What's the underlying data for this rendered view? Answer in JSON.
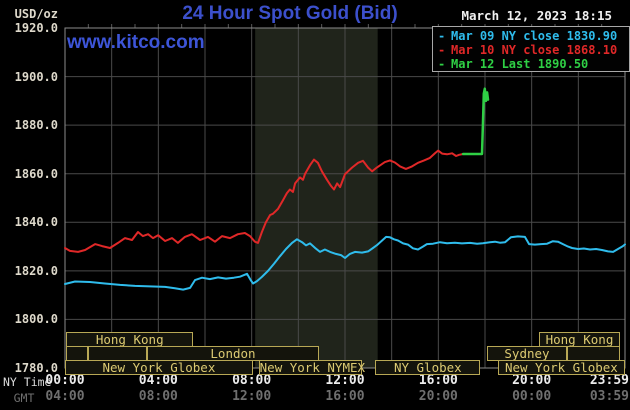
{
  "header": {
    "title": "24 Hour Spot Gold (Bid)",
    "datetime": "March 12, 2023 18:15",
    "watermark": "www.kitco.com",
    "y_unit": "USD/oz"
  },
  "legend": [
    {
      "label": "Mar 09 NY close 1830.90",
      "color": "#2fbcec"
    },
    {
      "label": "Mar 10 NY close 1868.10",
      "color": "#e02828"
    },
    {
      "label": "Mar 12 Last 1890.50",
      "color": "#2fd045"
    }
  ],
  "axes": {
    "ny_time_label": "NY Time",
    "gmt_label": "GMT",
    "y_ticks": [
      "1920.0",
      "1900.0",
      "1880.0",
      "1860.0",
      "1840.0",
      "1820.0",
      "1800.0",
      "1780.0"
    ],
    "ny_ticks": [
      "00:00",
      "04:00",
      "08:00",
      "12:00",
      "16:00",
      "20:00",
      "23:59"
    ],
    "gmt_ticks": [
      "04:00",
      "08:00",
      "12:00",
      "16:00",
      "20:00",
      "00:00",
      "03:59"
    ]
  },
  "sessions": [
    {
      "row": 0,
      "label": "Hong Kong",
      "start_h": 0.05,
      "end_h": 5.5
    },
    {
      "row": 0,
      "label": "Hong Kong",
      "start_h": 20.3,
      "end_h": 23.8
    },
    {
      "row": 1,
      "label": "",
      "start_h": 0.05,
      "end_h": 1.0
    },
    {
      "row": 1,
      "label": "",
      "start_h": 1.0,
      "end_h": 3.5
    },
    {
      "row": 1,
      "label": "London",
      "start_h": 3.5,
      "end_h": 10.9
    },
    {
      "row": 1,
      "label": "Sydney",
      "start_h": 18.1,
      "end_h": 21.5
    },
    {
      "row": 1,
      "label": "",
      "start_h": 21.5,
      "end_h": 23.8
    },
    {
      "row": 2,
      "label": "New York Globex",
      "start_h": 0.0,
      "end_h": 8.05
    },
    {
      "row": 2,
      "label": "New York NYMEX",
      "start_h": 8.3,
      "end_h": 12.75
    },
    {
      "row": 2,
      "label": "NY Globex",
      "start_h": 13.3,
      "end_h": 17.8
    },
    {
      "row": 2,
      "label": "New York Globex",
      "start_h": 18.55,
      "end_h": 24.0
    }
  ],
  "colors": {
    "grid": "#4a4a4a",
    "plot_border": "#8c8c8c",
    "highlight_band": "#20241b",
    "title_blue": "#3c50cc",
    "khaki_text": "#dcca72"
  },
  "chart_data": {
    "type": "line",
    "title": "24 Hour Spot Gold (Bid)",
    "xlabel": "NY Time (hours)",
    "ylabel": "USD/oz",
    "xlim": [
      0,
      24
    ],
    "ylim": [
      1780,
      1920
    ],
    "grid": {
      "x_step_hours": 2,
      "y_step": 20
    },
    "highlight_band_hours": [
      8.15,
      13.4
    ],
    "legend_position": "top-right",
    "series": [
      {
        "name": "Mar 09",
        "close": 1830.9,
        "color": "#2fbcec",
        "points": [
          [
            0.0,
            1814.6
          ],
          [
            0.43,
            1815.6
          ],
          [
            1.07,
            1815.4
          ],
          [
            1.71,
            1814.8
          ],
          [
            2.36,
            1814.2
          ],
          [
            3.0,
            1813.8
          ],
          [
            3.64,
            1813.6
          ],
          [
            4.29,
            1813.4
          ],
          [
            4.71,
            1812.8
          ],
          [
            5.06,
            1812.3
          ],
          [
            5.36,
            1813.0
          ],
          [
            5.57,
            1816.2
          ],
          [
            5.87,
            1817.2
          ],
          [
            6.21,
            1816.6
          ],
          [
            6.56,
            1817.3
          ],
          [
            6.9,
            1816.8
          ],
          [
            7.24,
            1817.2
          ],
          [
            7.5,
            1817.6
          ],
          [
            7.8,
            1818.8
          ],
          [
            7.97,
            1816.0
          ],
          [
            8.06,
            1814.8
          ],
          [
            8.23,
            1815.8
          ],
          [
            8.44,
            1817.5
          ],
          [
            8.7,
            1820.0
          ],
          [
            8.96,
            1823.0
          ],
          [
            9.21,
            1826.0
          ],
          [
            9.47,
            1829.0
          ],
          [
            9.73,
            1831.5
          ],
          [
            9.94,
            1833.0
          ],
          [
            10.16,
            1831.8
          ],
          [
            10.33,
            1830.5
          ],
          [
            10.5,
            1831.3
          ],
          [
            10.71,
            1829.5
          ],
          [
            10.93,
            1827.8
          ],
          [
            11.14,
            1828.8
          ],
          [
            11.36,
            1827.8
          ],
          [
            11.61,
            1827.0
          ],
          [
            11.83,
            1826.5
          ],
          [
            12.0,
            1825.3
          ],
          [
            12.21,
            1827.0
          ],
          [
            12.43,
            1827.8
          ],
          [
            12.73,
            1827.5
          ],
          [
            12.99,
            1828.0
          ],
          [
            13.2,
            1829.4
          ],
          [
            13.37,
            1830.6
          ],
          [
            13.59,
            1832.5
          ],
          [
            13.76,
            1834.0
          ],
          [
            13.93,
            1833.8
          ],
          [
            14.1,
            1833.0
          ],
          [
            14.27,
            1832.5
          ],
          [
            14.49,
            1831.3
          ],
          [
            14.7,
            1830.8
          ],
          [
            14.91,
            1829.3
          ],
          [
            15.13,
            1828.8
          ],
          [
            15.34,
            1830.0
          ],
          [
            15.51,
            1831.0
          ],
          [
            15.77,
            1831.2
          ],
          [
            16.07,
            1831.8
          ],
          [
            16.37,
            1831.4
          ],
          [
            16.71,
            1831.6
          ],
          [
            17.01,
            1831.3
          ],
          [
            17.36,
            1831.5
          ],
          [
            17.66,
            1831.2
          ],
          [
            17.91,
            1831.4
          ],
          [
            18.21,
            1831.8
          ],
          [
            18.43,
            1832.0
          ],
          [
            18.64,
            1831.6
          ],
          [
            18.86,
            1831.8
          ],
          [
            19.11,
            1833.8
          ],
          [
            19.41,
            1834.2
          ],
          [
            19.71,
            1834.0
          ],
          [
            19.89,
            1831.0
          ],
          [
            20.14,
            1830.8
          ],
          [
            20.4,
            1831.0
          ],
          [
            20.66,
            1831.2
          ],
          [
            20.91,
            1832.2
          ],
          [
            21.13,
            1832.0
          ],
          [
            21.34,
            1831.0
          ],
          [
            21.56,
            1830.0
          ],
          [
            21.73,
            1829.4
          ],
          [
            21.99,
            1829.0
          ],
          [
            22.24,
            1829.2
          ],
          [
            22.5,
            1828.8
          ],
          [
            22.76,
            1829.0
          ],
          [
            23.01,
            1828.6
          ],
          [
            23.27,
            1828.0
          ],
          [
            23.49,
            1827.8
          ],
          [
            23.7,
            1829.0
          ],
          [
            23.91,
            1830.2
          ],
          [
            24.0,
            1830.9
          ]
        ]
      },
      {
        "name": "Mar 10",
        "close": 1868.1,
        "color": "#e02828",
        "points": [
          [
            0.0,
            1829.4
          ],
          [
            0.21,
            1828.2
          ],
          [
            0.56,
            1827.8
          ],
          [
            0.86,
            1828.6
          ],
          [
            1.29,
            1831.0
          ],
          [
            1.59,
            1830.2
          ],
          [
            1.93,
            1829.4
          ],
          [
            2.27,
            1831.5
          ],
          [
            2.57,
            1833.5
          ],
          [
            2.87,
            1832.7
          ],
          [
            3.13,
            1836.0
          ],
          [
            3.34,
            1834.3
          ],
          [
            3.56,
            1835.1
          ],
          [
            3.77,
            1833.5
          ],
          [
            3.99,
            1834.7
          ],
          [
            4.29,
            1832.3
          ],
          [
            4.59,
            1833.5
          ],
          [
            4.84,
            1831.5
          ],
          [
            5.14,
            1834.0
          ],
          [
            5.44,
            1835.1
          ],
          [
            5.79,
            1832.7
          ],
          [
            6.13,
            1834.0
          ],
          [
            6.43,
            1832.0
          ],
          [
            6.73,
            1834.3
          ],
          [
            7.07,
            1833.5
          ],
          [
            7.41,
            1835.1
          ],
          [
            7.71,
            1835.6
          ],
          [
            7.93,
            1834.3
          ],
          [
            8.14,
            1832.0
          ],
          [
            8.27,
            1831.5
          ],
          [
            8.44,
            1836.0
          ],
          [
            8.61,
            1840.0
          ],
          [
            8.79,
            1843.0
          ],
          [
            8.91,
            1843.5
          ],
          [
            9.13,
            1845.5
          ],
          [
            9.34,
            1849.0
          ],
          [
            9.51,
            1852.0
          ],
          [
            9.64,
            1853.5
          ],
          [
            9.77,
            1852.5
          ],
          [
            9.86,
            1856.0
          ],
          [
            10.07,
            1858.5
          ],
          [
            10.2,
            1857.5
          ],
          [
            10.29,
            1860.0
          ],
          [
            10.5,
            1863.5
          ],
          [
            10.67,
            1865.8
          ],
          [
            10.84,
            1864.5
          ],
          [
            11.01,
            1861.0
          ],
          [
            11.23,
            1857.5
          ],
          [
            11.4,
            1855.0
          ],
          [
            11.53,
            1853.5
          ],
          [
            11.66,
            1856.0
          ],
          [
            11.79,
            1854.5
          ],
          [
            12.0,
            1859.8
          ],
          [
            12.3,
            1862.5
          ],
          [
            12.56,
            1864.5
          ],
          [
            12.77,
            1865.3
          ],
          [
            12.99,
            1862.5
          ],
          [
            13.16,
            1861.0
          ],
          [
            13.37,
            1862.6
          ],
          [
            13.71,
            1864.8
          ],
          [
            13.93,
            1865.5
          ],
          [
            14.14,
            1864.6
          ],
          [
            14.36,
            1863.0
          ],
          [
            14.61,
            1862.0
          ],
          [
            14.87,
            1863.0
          ],
          [
            15.13,
            1864.5
          ],
          [
            15.39,
            1865.5
          ],
          [
            15.64,
            1866.5
          ],
          [
            15.86,
            1868.5
          ],
          [
            15.99,
            1869.5
          ],
          [
            16.16,
            1868.3
          ],
          [
            16.37,
            1868.0
          ],
          [
            16.59,
            1868.4
          ],
          [
            16.76,
            1867.3
          ],
          [
            16.89,
            1867.8
          ],
          [
            17.06,
            1868.1
          ]
        ]
      },
      {
        "name": "Mar 12",
        "last": 1890.5,
        "color": "#2fd045",
        "points": [
          [
            17.06,
            1868.1
          ],
          [
            17.87,
            1868.1
          ],
          [
            17.91,
            1880.0
          ],
          [
            17.95,
            1893.0
          ],
          [
            17.99,
            1895.0
          ],
          [
            18.04,
            1890.0
          ],
          [
            18.09,
            1893.5
          ],
          [
            18.13,
            1890.5
          ]
        ]
      }
    ]
  }
}
